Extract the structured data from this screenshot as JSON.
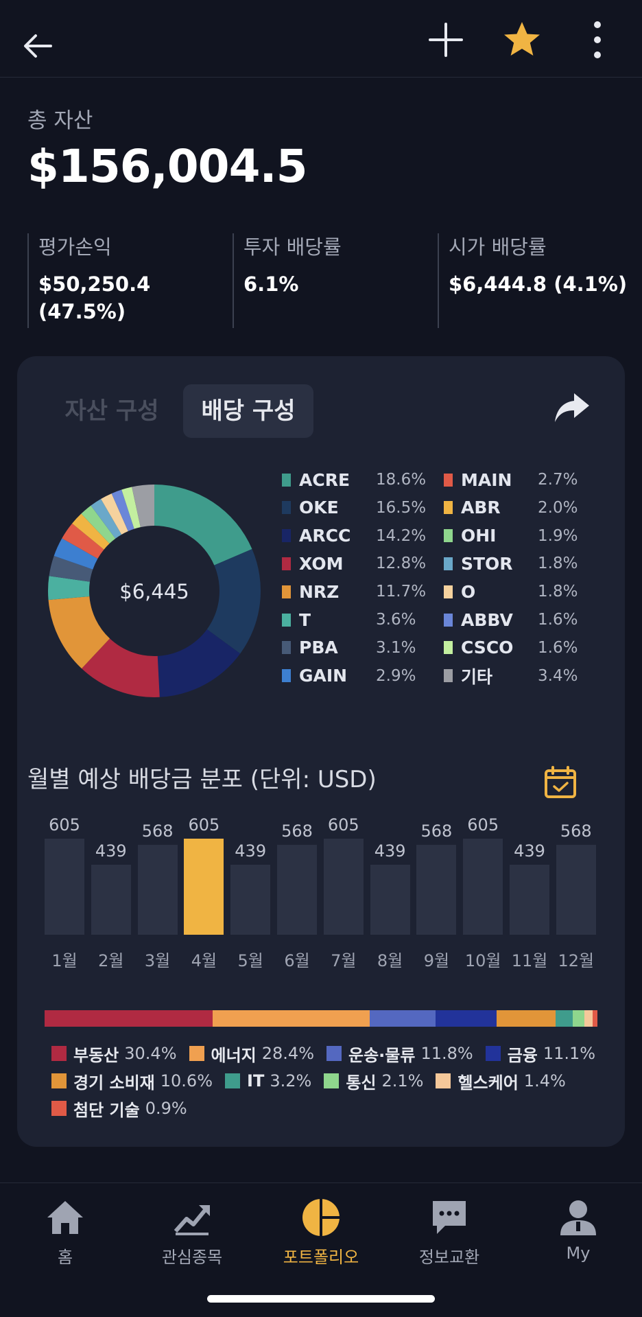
{
  "header": {
    "back_icon": "arrow-left-icon",
    "add_icon": "plus-icon",
    "favorite_icon": "star-icon",
    "favorite_color": "#f0b443",
    "more_icon": "more-vertical-icon"
  },
  "summary": {
    "total_label": "총 자산",
    "total_value": "$156,004.5",
    "stats": [
      {
        "label": "평가손익",
        "value_line1": "$50,250.4",
        "value_line2": "(47.5%)"
      },
      {
        "label": "투자 배당률",
        "value_line1": "6.1%",
        "value_line2": ""
      },
      {
        "label": "시가 배당률",
        "value_line1": "$6,444.8 (4.1%)",
        "value_line2": ""
      }
    ]
  },
  "card": {
    "tabs": [
      {
        "label": "자산 구성",
        "active": false
      },
      {
        "label": "배당 구성",
        "active": true
      }
    ],
    "share_icon": "share-icon",
    "donut_center": "$6,445",
    "holdings": [
      {
        "name": "ACRE",
        "pct": "18.6%",
        "value": 18.6,
        "color": "#3f9c8c"
      },
      {
        "name": "OKE",
        "pct": "16.5%",
        "value": 16.5,
        "color": "#1e3a5f"
      },
      {
        "name": "ARCC",
        "pct": "14.2%",
        "value": 14.2,
        "color": "#182566"
      },
      {
        "name": "XOM",
        "pct": "12.8%",
        "value": 12.8,
        "color": "#b02a42"
      },
      {
        "name": "NRZ",
        "pct": "11.7%",
        "value": 11.7,
        "color": "#e19539"
      },
      {
        "name": "T",
        "pct": "3.6%",
        "value": 3.6,
        "color": "#4bb0a0"
      },
      {
        "name": "PBA",
        "pct": "3.1%",
        "value": 3.1,
        "color": "#475a77"
      },
      {
        "name": "GAIN",
        "pct": "2.9%",
        "value": 2.9,
        "color": "#3d7fd0"
      },
      {
        "name": "MAIN",
        "pct": "2.7%",
        "value": 2.7,
        "color": "#e05a47"
      },
      {
        "name": "ABR",
        "pct": "2.0%",
        "value": 2.0,
        "color": "#f0b443"
      },
      {
        "name": "OHI",
        "pct": "1.9%",
        "value": 1.9,
        "color": "#8fd68d"
      },
      {
        "name": "STOR",
        "pct": "1.8%",
        "value": 1.8,
        "color": "#6aa8c9"
      },
      {
        "name": "O",
        "pct": "1.8%",
        "value": 1.8,
        "color": "#f5d29e"
      },
      {
        "name": "ABBV",
        "pct": "1.6%",
        "value": 1.6,
        "color": "#6a86d8"
      },
      {
        "name": "CSCO",
        "pct": "1.6%",
        "value": 1.6,
        "color": "#c3efa0"
      },
      {
        "name": "기타",
        "pct": "3.4%",
        "value": 3.4,
        "color": "#9c9ea4"
      }
    ],
    "monthly_title": "월별 예상 배당금 분포 (단위: USD)",
    "calendar_icon": "calendar-check-icon",
    "sectors": [
      {
        "name": "부동산",
        "pct": "30.4%",
        "value": 30.4,
        "color": "#b02a42"
      },
      {
        "name": "에너지",
        "pct": "28.4%",
        "value": 28.4,
        "color": "#f0a050"
      },
      {
        "name": "운송·물류",
        "pct": "11.8%",
        "value": 11.8,
        "color": "#5468c0"
      },
      {
        "name": "금융",
        "pct": "11.1%",
        "value": 11.1,
        "color": "#22339a"
      },
      {
        "name": "경기 소비재",
        "pct": "10.6%",
        "value": 10.6,
        "color": "#e19539"
      },
      {
        "name": "IT",
        "pct": "3.2%",
        "value": 3.2,
        "color": "#3f9c8c"
      },
      {
        "name": "통신",
        "pct": "2.1%",
        "value": 2.1,
        "color": "#8fd68d"
      },
      {
        "name": "헬스케어",
        "pct": "1.4%",
        "value": 1.4,
        "color": "#f5c89a"
      },
      {
        "name": "첨단 기술",
        "pct": "0.9%",
        "value": 0.9,
        "color": "#e05a47"
      }
    ]
  },
  "chart_data": {
    "type": "bar",
    "categories": [
      "1월",
      "2월",
      "3월",
      "4월",
      "5월",
      "6월",
      "7월",
      "8월",
      "9월",
      "10월",
      "11월",
      "12월"
    ],
    "values": [
      605,
      439,
      568,
      605,
      439,
      568,
      605,
      439,
      568,
      605,
      439,
      568
    ],
    "highlight_index": 3,
    "title": "월별 예상 배당금 분포 (단위: USD)",
    "bar_color": "#2c3244",
    "highlight_color": "#f0b443"
  },
  "nav": {
    "items": [
      {
        "label": "홈",
        "icon": "home-icon",
        "active": false
      },
      {
        "label": "관심종목",
        "icon": "trending-chart-icon",
        "active": false
      },
      {
        "label": "포트폴리오",
        "icon": "pie-chart-icon",
        "active": true
      },
      {
        "label": "정보교환",
        "icon": "chat-bubble-icon",
        "active": false
      },
      {
        "label": "My",
        "icon": "user-icon",
        "active": false
      }
    ],
    "active_color": "#f0b443"
  }
}
